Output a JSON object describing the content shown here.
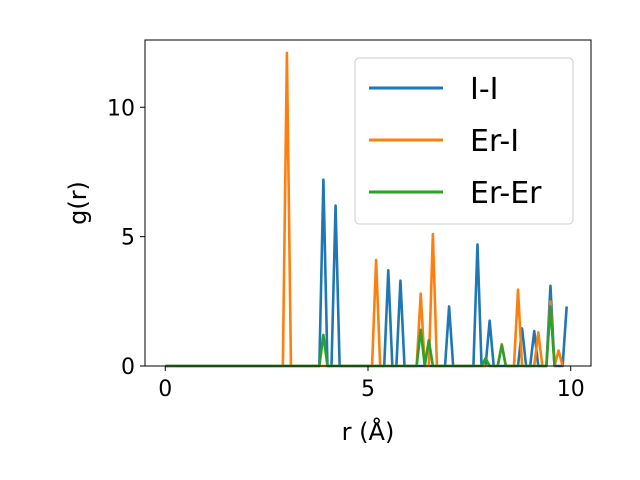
{
  "chart_data": {
    "type": "line",
    "xlabel": "r (Å)",
    "ylabel": "g(r)",
    "xlim": [
      -0.5,
      10.5
    ],
    "ylim": [
      0,
      12.6
    ],
    "xticks": [
      0,
      5,
      10
    ],
    "yticks": [
      0,
      5,
      10
    ],
    "grid": false,
    "legend": "top-right",
    "series": [
      {
        "name": "I-I",
        "color": "#1f77b4",
        "x": [
          0,
          3.7,
          3.8,
          3.9,
          4.0,
          4.1,
          4.2,
          4.3,
          5.4,
          5.5,
          5.6,
          5.7,
          5.8,
          5.9,
          6.9,
          7.0,
          7.1,
          7.6,
          7.7,
          7.8,
          7.9,
          8.0,
          8.1,
          8.7,
          8.8,
          8.9,
          9.0,
          9.1,
          9.2,
          9.4,
          9.5,
          9.6,
          9.8,
          9.9
        ],
        "y": [
          0,
          0,
          0,
          7.2,
          0,
          0,
          6.2,
          0,
          0,
          3.7,
          0,
          0,
          3.3,
          0,
          0,
          2.3,
          0,
          0,
          4.7,
          0,
          0,
          1.75,
          0,
          0,
          1.45,
          0,
          0,
          1.35,
          0,
          0,
          3.1,
          0,
          0,
          2.3
        ]
      },
      {
        "name": "Er-I",
        "color": "#ff7f0e",
        "x": [
          0,
          2.9,
          3.0,
          3.1,
          5.1,
          5.2,
          5.3,
          6.2,
          6.3,
          6.4,
          6.5,
          6.6,
          6.7,
          8.2,
          8.3,
          8.4,
          8.6,
          8.7,
          8.8,
          9.1,
          9.2,
          9.3,
          9.4,
          9.5,
          9.6,
          9.7,
          9.8
        ],
        "y": [
          0,
          0,
          12.1,
          0,
          0,
          4.1,
          0,
          0,
          2.8,
          0,
          0,
          5.1,
          0,
          0,
          0.85,
          0,
          0,
          2.95,
          0,
          0,
          1.3,
          0,
          0,
          2.5,
          0,
          0.6,
          0
        ]
      },
      {
        "name": "Er-Er",
        "color": "#2ca02c",
        "x": [
          0,
          3.8,
          3.9,
          4.0,
          6.2,
          6.3,
          6.4,
          6.5,
          6.6,
          7.8,
          7.9,
          8.0,
          8.2,
          8.3,
          8.4,
          8.5,
          9.4,
          9.5,
          9.6
        ],
        "y": [
          0,
          0,
          1.2,
          0,
          0,
          1.4,
          0,
          1.0,
          0,
          0,
          0.3,
          0,
          0,
          0.8,
          0,
          0,
          0,
          2.3,
          0
        ]
      }
    ]
  }
}
